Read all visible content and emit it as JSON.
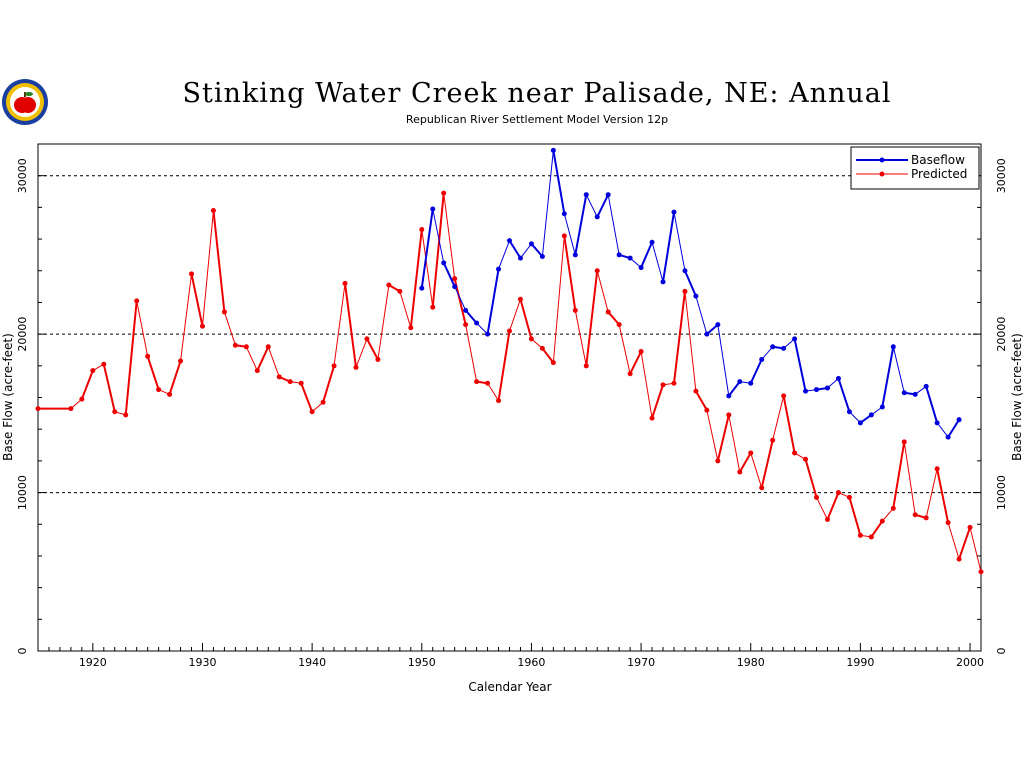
{
  "chart_data": {
    "type": "line",
    "title": "Stinking Water Creek near Palisade, NE: Annual",
    "subtitle": "Republican River Settlement Model Version 12p",
    "xlabel": "Calendar Year",
    "ylabel": "Base Flow (acre-feet)",
    "ylabel_right": "Base Flow (acre-feet)",
    "xlim": [
      1915,
      2001
    ],
    "ylim": [
      0,
      32000
    ],
    "x_ticks": [
      1920,
      1930,
      1940,
      1950,
      1960,
      1970,
      1980,
      1990,
      2000
    ],
    "x_tick_labels": [
      "1920",
      "1930",
      "1940",
      "1950",
      "1960",
      "1970",
      "1980",
      "1990",
      "2000"
    ],
    "y_ticks": [
      0,
      10000,
      20000,
      30000
    ],
    "y_tick_labels": [
      "0",
      "10000",
      "20000",
      "30000"
    ],
    "gridlines_y": [
      10000,
      20000,
      30000
    ],
    "legend_position": "top-right",
    "series": [
      {
        "name": "Baseflow",
        "color": "#0000dd",
        "x": [
          1950,
          1951,
          1952,
          1953,
          1954,
          1955,
          1956,
          1957,
          1958,
          1959,
          1960,
          1961,
          1962,
          1963,
          1964,
          1965,
          1966,
          1967,
          1968,
          1969,
          1970,
          1971,
          1972,
          1973,
          1974,
          1975,
          1976,
          1977,
          1978,
          1979,
          1980,
          1981,
          1982,
          1983,
          1984,
          1985,
          1986,
          1987,
          1988,
          1989,
          1990,
          1991,
          1992,
          1993,
          1994,
          1995,
          1996,
          1997,
          1998,
          1999
        ],
        "y": [
          22900,
          27900,
          24500,
          23000,
          21500,
          20700,
          20000,
          24100,
          25900,
          24800,
          25700,
          24900,
          31600,
          27600,
          25000,
          28800,
          27400,
          28800,
          25000,
          24800,
          24200,
          25800,
          23300,
          27700,
          24000,
          22400,
          20000,
          20600,
          16100,
          17000,
          16900,
          18400,
          19200,
          19100,
          19700,
          16400,
          16500,
          16600,
          17200,
          15100,
          14400,
          14900,
          15400,
          19200,
          16300,
          16200,
          16700,
          14400,
          13500,
          14600
        ]
      },
      {
        "name": "Predicted",
        "color": "#ee0000",
        "x": [
          1915,
          1918,
          1919,
          1920,
          1921,
          1922,
          1923,
          1924,
          1925,
          1926,
          1927,
          1928,
          1929,
          1930,
          1931,
          1932,
          1933,
          1934,
          1935,
          1936,
          1937,
          1938,
          1939,
          1940,
          1941,
          1942,
          1943,
          1944,
          1945,
          1946,
          1947,
          1948,
          1949,
          1950,
          1951,
          1952,
          1953,
          1954,
          1955,
          1956,
          1957,
          1958,
          1959,
          1960,
          1961,
          1962,
          1963,
          1964,
          1965,
          1966,
          1967,
          1968,
          1969,
          1970,
          1971,
          1972,
          1973,
          1974,
          1975,
          1976,
          1977,
          1978,
          1979,
          1980,
          1981,
          1982,
          1983,
          1984,
          1985,
          1986,
          1987,
          1988,
          1989,
          1990,
          1991,
          1992,
          1993,
          1994,
          1995,
          1996,
          1997,
          1998,
          1999,
          2000,
          2001
        ],
        "y": [
          15300,
          15300,
          15900,
          17700,
          18100,
          15100,
          14900,
          22100,
          18600,
          16500,
          16200,
          18300,
          23800,
          20500,
          27800,
          21400,
          19300,
          19200,
          17700,
          19200,
          17300,
          17000,
          16900,
          15100,
          15700,
          18000,
          23200,
          17900,
          19700,
          18400,
          23100,
          22700,
          20400,
          26600,
          21700,
          28900,
          23500,
          20600,
          17000,
          16900,
          15800,
          20200,
          22200,
          19700,
          19100,
          18200,
          26200,
          21500,
          18000,
          24000,
          21400,
          20600,
          17500,
          18900,
          14700,
          16800,
          16900,
          22700,
          16400,
          15200,
          12000,
          14900,
          11300,
          12500,
          10300,
          13300,
          16100,
          12500,
          12100,
          9700,
          8300,
          10000,
          9700,
          7300,
          7200,
          8200,
          9000,
          13200,
          8600,
          8400,
          11500,
          8100,
          5800,
          7800,
          5000
        ]
      }
    ]
  },
  "logo": {
    "name": "agency seal with apple"
  }
}
